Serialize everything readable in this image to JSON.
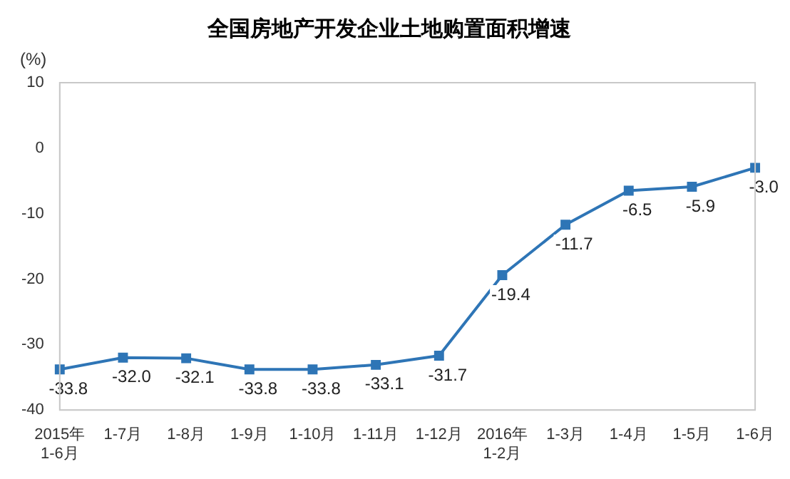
{
  "chart_data": {
    "type": "line",
    "title": "全国房地产开发企业土地购置面积增速",
    "ylabel": "(%)",
    "categories": [
      "2015年\n1-6月",
      "1-7月",
      "1-8月",
      "1-9月",
      "1-10月",
      "1-11月",
      "1-12月",
      "2016年\n1-2月",
      "1-3月",
      "1-4月",
      "1-5月",
      "1-6月"
    ],
    "series": [
      {
        "color": "#2e75b6",
        "values": [
          -33.8,
          -32.0,
          -32.1,
          -33.8,
          -33.8,
          -33.1,
          -31.7,
          -19.4,
          -11.7,
          -6.5,
          -5.9,
          -3.0
        ]
      }
    ],
    "value_labels": [
      "-33.8",
      "-32.0",
      "-32.1",
      "-33.8",
      "-33.8",
      "-33.1",
      "-31.7",
      "-19.4",
      "-11.7",
      "-6.5",
      "-5.9",
      "-3.0"
    ],
    "ylim": [
      -40,
      10
    ],
    "yticks": [
      -40,
      -30,
      -20,
      -10,
      0,
      10
    ],
    "grid": false,
    "legend": false,
    "marker": "square",
    "line_style": "solid"
  }
}
